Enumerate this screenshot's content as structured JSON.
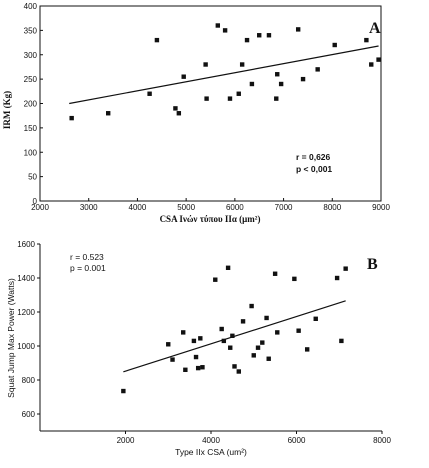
{
  "chart_data": [
    {
      "type": "scatter",
      "panel_label": "A",
      "xlabel": "CSA Ινών τύπου IIα (μm²)",
      "ylabel": "IRM (Kg)",
      "xlim": [
        2000,
        9000
      ],
      "ylim": [
        0,
        400
      ],
      "xticks": [
        2000,
        3000,
        4000,
        5000,
        6000,
        7000,
        8000,
        9000
      ],
      "yticks": [
        0,
        50,
        100,
        150,
        200,
        250,
        300,
        350,
        400
      ],
      "annotations": [
        "r = 0,626",
        "p < 0,001"
      ],
      "points": [
        {
          "x": 2650,
          "y": 170
        },
        {
          "x": 3400,
          "y": 180
        },
        {
          "x": 4250,
          "y": 220
        },
        {
          "x": 4400,
          "y": 330
        },
        {
          "x": 4780,
          "y": 190
        },
        {
          "x": 4850,
          "y": 180
        },
        {
          "x": 4950,
          "y": 255
        },
        {
          "x": 5400,
          "y": 280
        },
        {
          "x": 5420,
          "y": 210
        },
        {
          "x": 5650,
          "y": 360
        },
        {
          "x": 5800,
          "y": 350
        },
        {
          "x": 5900,
          "y": 210
        },
        {
          "x": 6080,
          "y": 220
        },
        {
          "x": 6150,
          "y": 280
        },
        {
          "x": 6250,
          "y": 330
        },
        {
          "x": 6350,
          "y": 240
        },
        {
          "x": 6500,
          "y": 340
        },
        {
          "x": 6700,
          "y": 340
        },
        {
          "x": 6850,
          "y": 210
        },
        {
          "x": 6870,
          "y": 260
        },
        {
          "x": 6950,
          "y": 240
        },
        {
          "x": 7300,
          "y": 352
        },
        {
          "x": 7400,
          "y": 250
        },
        {
          "x": 7700,
          "y": 270
        },
        {
          "x": 8050,
          "y": 320
        },
        {
          "x": 8700,
          "y": 330
        },
        {
          "x": 8800,
          "y": 280
        },
        {
          "x": 8950,
          "y": 290
        }
      ],
      "fit_line": {
        "x": [
          2600,
          8950
        ],
        "y": [
          200,
          318
        ]
      }
    },
    {
      "type": "scatter",
      "panel_label": "B",
      "xlabel": "Type IIx CSA (um²)",
      "ylabel": "Squat Jump Max Power (Watts)",
      "xlim": [
        0,
        8000
      ],
      "ylim": [
        500,
        1600
      ],
      "xticks": [
        2000,
        4000,
        6000,
        8000
      ],
      "yticks": [
        600,
        800,
        1000,
        1200,
        1400,
        1600
      ],
      "annotations": [
        "r = 0.523",
        "p = 0.001"
      ],
      "points": [
        {
          "x": 1950,
          "y": 735
        },
        {
          "x": 3000,
          "y": 1010
        },
        {
          "x": 3100,
          "y": 920
        },
        {
          "x": 3350,
          "y": 1080
        },
        {
          "x": 3400,
          "y": 860
        },
        {
          "x": 3600,
          "y": 1030
        },
        {
          "x": 3650,
          "y": 935
        },
        {
          "x": 3700,
          "y": 870
        },
        {
          "x": 3750,
          "y": 1045
        },
        {
          "x": 3800,
          "y": 875
        },
        {
          "x": 4100,
          "y": 1390
        },
        {
          "x": 4250,
          "y": 1100
        },
        {
          "x": 4300,
          "y": 1030
        },
        {
          "x": 4400,
          "y": 1460
        },
        {
          "x": 4450,
          "y": 990
        },
        {
          "x": 4500,
          "y": 1060
        },
        {
          "x": 4550,
          "y": 880
        },
        {
          "x": 4650,
          "y": 850
        },
        {
          "x": 4750,
          "y": 1145
        },
        {
          "x": 4950,
          "y": 1235
        },
        {
          "x": 5000,
          "y": 945
        },
        {
          "x": 5100,
          "y": 990
        },
        {
          "x": 5200,
          "y": 1020
        },
        {
          "x": 5300,
          "y": 1165
        },
        {
          "x": 5350,
          "y": 925
        },
        {
          "x": 5500,
          "y": 1425
        },
        {
          "x": 5550,
          "y": 1080
        },
        {
          "x": 5950,
          "y": 1395
        },
        {
          "x": 6050,
          "y": 1090
        },
        {
          "x": 6250,
          "y": 980
        },
        {
          "x": 6450,
          "y": 1160
        },
        {
          "x": 6950,
          "y": 1400
        },
        {
          "x": 7050,
          "y": 1030
        },
        {
          "x": 7150,
          "y": 1455
        }
      ],
      "fit_line": {
        "x": [
          1950,
          7150
        ],
        "y": [
          848,
          1266
        ]
      }
    }
  ]
}
